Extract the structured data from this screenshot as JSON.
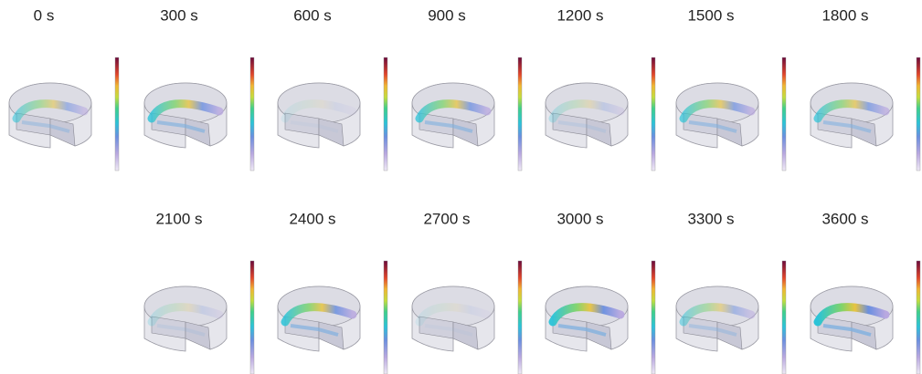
{
  "panels": [
    {
      "label": "0 s"
    },
    {
      "label": "300 s"
    },
    {
      "label": "600 s"
    },
    {
      "label": "900 s"
    },
    {
      "label": "1200 s"
    },
    {
      "label": "1500 s"
    },
    {
      "label": "1800 s"
    },
    {
      "label": "2100 s"
    },
    {
      "label": "2400 s"
    },
    {
      "label": "2700 s"
    },
    {
      "label": "3000 s"
    },
    {
      "label": "3300 s"
    },
    {
      "label": "3600 s"
    }
  ]
}
